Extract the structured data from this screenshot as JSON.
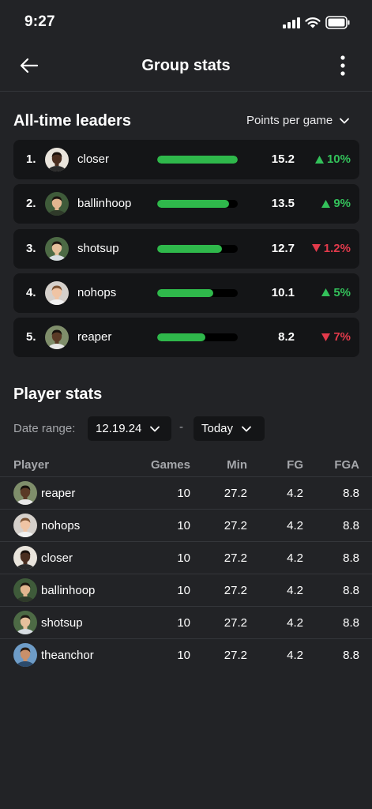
{
  "status": {
    "time": "9:27"
  },
  "header": {
    "title": "Group stats"
  },
  "leaders": {
    "title": "All-time leaders",
    "metric": "Points per game",
    "rows": [
      {
        "rank": "1.",
        "name": "closer",
        "value": "15.2",
        "change": "10%",
        "direction": "up",
        "fill": 1.0,
        "avatar": "avatar-closer"
      },
      {
        "rank": "2.",
        "name": "ballinhoop",
        "value": "13.5",
        "change": "9%",
        "direction": "up",
        "fill": 0.89,
        "avatar": "avatar-ballinhoop"
      },
      {
        "rank": "3.",
        "name": "shotsup",
        "value": "12.7",
        "change": "1.2%",
        "direction": "down",
        "fill": 0.8,
        "avatar": "avatar-shotsup"
      },
      {
        "rank": "4.",
        "name": "nohops",
        "value": "10.1",
        "change": "5%",
        "direction": "up",
        "fill": 0.7,
        "avatar": "avatar-nohops"
      },
      {
        "rank": "5.",
        "name": "reaper",
        "value": "8.2",
        "change": "7%",
        "direction": "down",
        "fill": 0.6,
        "avatar": "avatar-reaper"
      }
    ]
  },
  "player_stats": {
    "title": "Player stats",
    "date_label": "Date range:",
    "start_date": "12.19.24",
    "separator": "-",
    "end_date": "Today",
    "columns": {
      "player": "Player",
      "games": "Games",
      "min": "Min",
      "fg": "FG",
      "fga": "FGA"
    },
    "rows": [
      {
        "name": "reaper",
        "games": "10",
        "min": "27.2",
        "fg": "4.2",
        "fga": "8.8",
        "avatar": "avatar-reaper"
      },
      {
        "name": "nohops",
        "games": "10",
        "min": "27.2",
        "fg": "4.2",
        "fga": "8.8",
        "avatar": "avatar-nohops"
      },
      {
        "name": "closer",
        "games": "10",
        "min": "27.2",
        "fg": "4.2",
        "fga": "8.8",
        "avatar": "avatar-closer"
      },
      {
        "name": "ballinhoop",
        "games": "10",
        "min": "27.2",
        "fg": "4.2",
        "fga": "8.8",
        "avatar": "avatar-ballinhoop"
      },
      {
        "name": "shotsup",
        "games": "10",
        "min": "27.2",
        "fg": "4.2",
        "fga": "8.8",
        "avatar": "avatar-shotsup"
      },
      {
        "name": "theanchor",
        "games": "10",
        "min": "27.2",
        "fg": "4.2",
        "fga": "8.8",
        "avatar": "avatar-theanchor"
      }
    ]
  },
  "colors": {
    "background": "#222326",
    "card": "#141517",
    "bar": "#2fb84b",
    "up": "#33c15a",
    "down": "#e23a4b",
    "muted": "#a5a7ab"
  }
}
